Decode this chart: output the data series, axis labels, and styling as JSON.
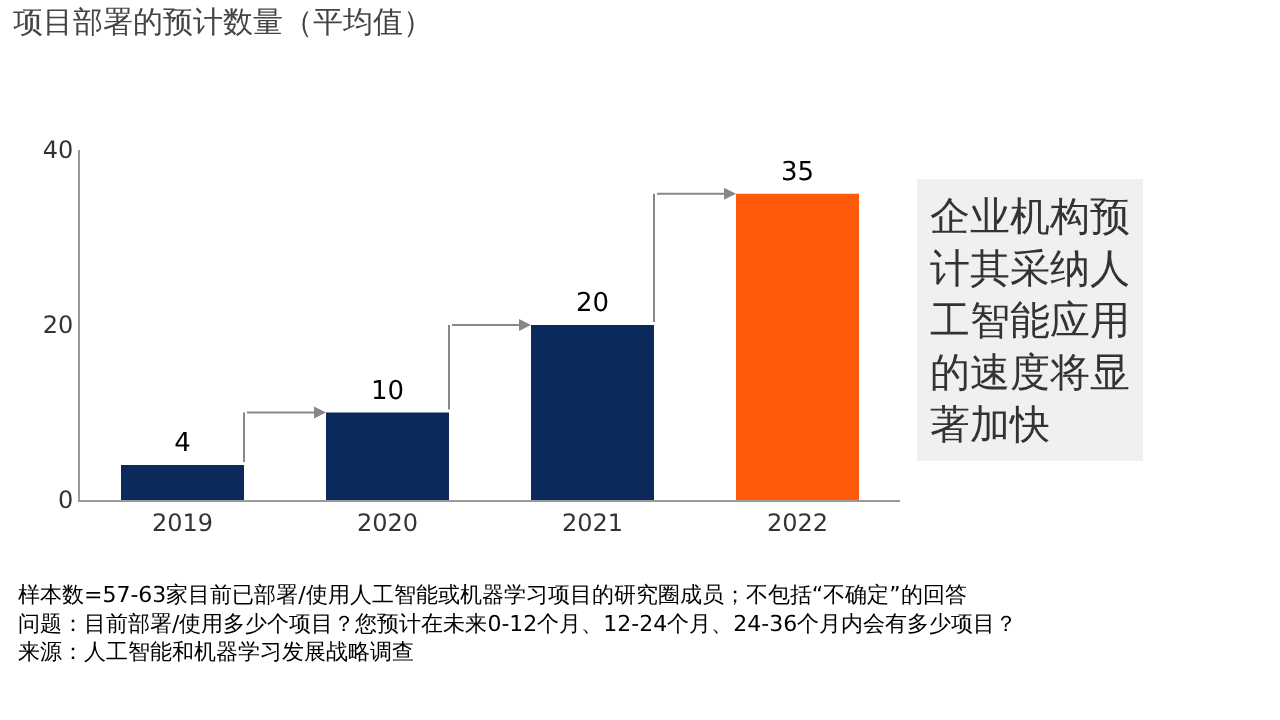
{
  "chart_data": {
    "type": "bar",
    "title": "项目部署的预计数量（平均值）",
    "categories": [
      "2019",
      "2020",
      "2021",
      "2022"
    ],
    "values": [
      4,
      10,
      20,
      35
    ],
    "colors": [
      "#0b2a5b",
      "#0b2a5b",
      "#0b2a5b",
      "#ff5a0a"
    ],
    "ylim": [
      0,
      40
    ],
    "yticks": [
      0,
      20,
      40
    ],
    "data_labels": true,
    "annotations": [
      "企业机构预计其采纳人工智能应用的速度将显著加快",
      "样本数=57-63家目前已部署/使用人工智能或机器学习项目的研究圈成员；不包括“不确定”的回答",
      "问题：目前部署/使用多少个项目？您预计在未来0-12个月、12-24个月、24-36个月内会有多少项目？",
      "来源：人工智能和机器学习发展战略调查"
    ]
  }
}
